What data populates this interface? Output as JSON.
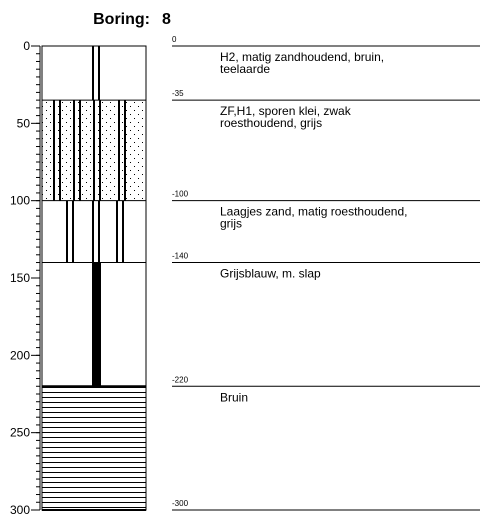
{
  "header": {
    "label": "Boring:",
    "number": "8"
  },
  "axis": {
    "ylim": [
      0,
      300
    ],
    "ticks": [
      0,
      50,
      100,
      150,
      200,
      250,
      300
    ],
    "minor_tick_step": 5
  },
  "layers": [
    {
      "top": {
        "value": 0,
        "label": "0"
      },
      "bottom": 35,
      "pattern": "plain",
      "symbol": "double-center",
      "description": [
        "H2, matig zandhoudend, bruin,",
        "teelaarde"
      ]
    },
    {
      "top": {
        "value": 35,
        "label": "-35"
      },
      "bottom": 100,
      "pattern": "sand",
      "symbol": "double-many",
      "description": [
        "ZF,H1, sporen klei, zwak",
        "roesthoudend, grijs"
      ]
    },
    {
      "top": {
        "value": 100,
        "label": "-100"
      },
      "bottom": 140,
      "pattern": "plain",
      "symbol": "double-three",
      "description": [
        "Laagjes zand, matig roesthoudend,",
        "grijs"
      ]
    },
    {
      "top": {
        "value": 140,
        "label": "-140"
      },
      "bottom": 220,
      "pattern": "plain",
      "symbol": "thick",
      "description": [
        "Grijsblauw, m. slap"
      ]
    },
    {
      "top": {
        "value": 220,
        "label": "-220"
      },
      "bottom": 300,
      "pattern": "clay",
      "symbol": "none",
      "description": [
        "Bruin"
      ]
    }
  ],
  "end": {
    "value": 300,
    "label": "-300"
  }
}
